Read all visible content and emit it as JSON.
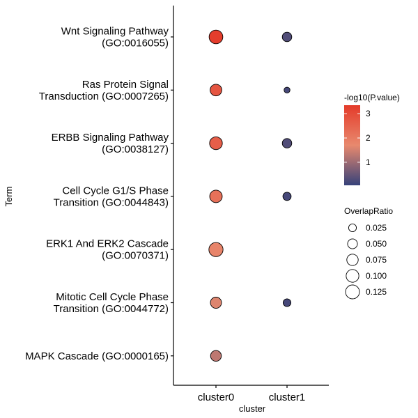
{
  "chart_data": {
    "type": "scatter",
    "subtype": "dot-plot",
    "xlabel": "cluster",
    "ylabel": "Term",
    "categories_x": [
      "cluster0",
      "cluster1"
    ],
    "terms": [
      [
        "Wnt Signaling Pathway",
        "(GO:0016055)"
      ],
      [
        "Ras Protein Signal",
        "Transduction (GO:0007265)"
      ],
      [
        "ERBB Signaling Pathway",
        "(GO:0038127)"
      ],
      [
        "Cell Cycle G1/S Phase",
        "Transition (GO:0044843)"
      ],
      [
        "ERK1 And ERK2 Cascade",
        "(GO:0070371)"
      ],
      [
        "Mitotic Cell Cycle Phase",
        "Transition (GO:0044772)"
      ],
      [
        "MAPK Cascade (GO:0000165)"
      ]
    ],
    "points": [
      {
        "cluster": "cluster0",
        "term_index": 0,
        "neg_log10_p": 3.3,
        "overlap_ratio": 0.12
      },
      {
        "cluster": "cluster1",
        "term_index": 0,
        "neg_log10_p": 0.3,
        "overlap_ratio": 0.045
      },
      {
        "cluster": "cluster0",
        "term_index": 1,
        "neg_log10_p": 2.8,
        "overlap_ratio": 0.08
      },
      {
        "cluster": "cluster1",
        "term_index": 1,
        "neg_log10_p": 0.2,
        "overlap_ratio": 0.01
      },
      {
        "cluster": "cluster0",
        "term_index": 2,
        "neg_log10_p": 2.6,
        "overlap_ratio": 0.1
      },
      {
        "cluster": "cluster1",
        "term_index": 2,
        "neg_log10_p": 0.3,
        "overlap_ratio": 0.045
      },
      {
        "cluster": "cluster0",
        "term_index": 3,
        "neg_log10_p": 2.2,
        "overlap_ratio": 0.095
      },
      {
        "cluster": "cluster1",
        "term_index": 3,
        "neg_log10_p": 0.2,
        "overlap_ratio": 0.03
      },
      {
        "cluster": "cluster0",
        "term_index": 4,
        "neg_log10_p": 1.8,
        "overlap_ratio": 0.13
      },
      {
        "cluster": "cluster0",
        "term_index": 5,
        "neg_log10_p": 1.6,
        "overlap_ratio": 0.07
      },
      {
        "cluster": "cluster1",
        "term_index": 5,
        "neg_log10_p": 0.2,
        "overlap_ratio": 0.025
      },
      {
        "cluster": "cluster0",
        "term_index": 6,
        "neg_log10_p": 1.3,
        "overlap_ratio": 0.065
      }
    ],
    "color_legend": {
      "title": "-log10(P.value)",
      "ticks": [
        1,
        2,
        3
      ],
      "range": [
        0.05,
        3.35
      ],
      "low_color": "#36427a",
      "mid_color": "#e8896e",
      "high_color": "#e43b2a"
    },
    "size_legend": {
      "title": "OverlapRatio",
      "values": [
        0.025,
        0.05,
        0.075,
        0.1,
        0.125
      ],
      "labels": [
        "0.025",
        "0.050",
        "0.075",
        "0.100",
        "0.125"
      ]
    },
    "grid": false,
    "legend_position": "right"
  }
}
